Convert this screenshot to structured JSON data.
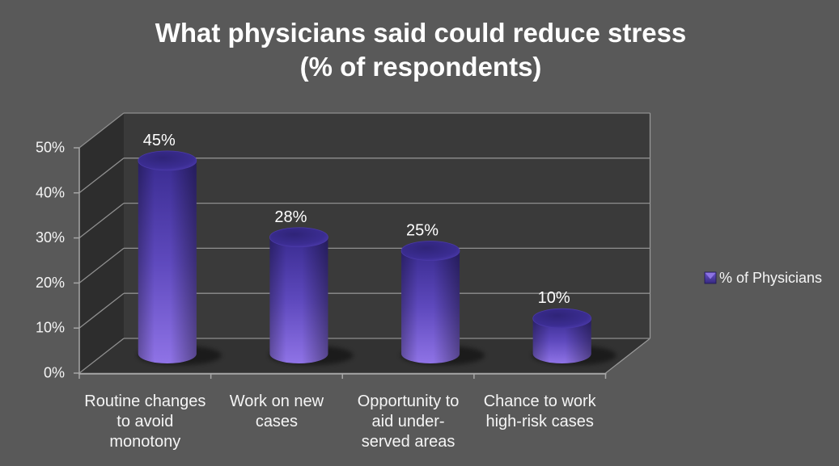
{
  "chart_data": {
    "type": "bar",
    "subtype": "3d-cylinder",
    "title": "What physicians said could reduce stress",
    "subtitle": "(% of respondents)",
    "categories": [
      "Routine changes to avoid monotony",
      "Work on new cases",
      "Opportunity to aid under-served areas",
      "Chance to work high-risk cases"
    ],
    "categories_wrapped": [
      [
        "Routine changes",
        "to avoid",
        "monotony"
      ],
      [
        "Work on new",
        "cases"
      ],
      [
        "Opportunity to",
        "aid under-",
        "served areas"
      ],
      [
        "Chance to work",
        "high-risk cases"
      ]
    ],
    "series": [
      {
        "name": "% of Physicians",
        "values": [
          45,
          28,
          25,
          10
        ]
      }
    ],
    "data_labels": [
      "45%",
      "28%",
      "25%",
      "10%"
    ],
    "y_ticks": [
      "0%",
      "10%",
      "20%",
      "30%",
      "40%",
      "50%"
    ],
    "ylim": [
      0,
      50
    ],
    "xlabel": "",
    "ylabel": "",
    "grid": true,
    "legend_position": "right",
    "colors": {
      "background": "#595959",
      "wall_back": "#3a3a3a",
      "wall_side": "#2d2d2d",
      "floor": "#323232",
      "gridline": "#8f8f8f",
      "axis_line": "#a6a6a6",
      "wall_edge": "#9a9a9a",
      "bar_body_top": "#3a2c91",
      "bar_body_mid": "#5e49bd",
      "bar_body_bottom": "#8f73e6",
      "bar_cap_dark": "#2f2478",
      "bar_cap_mid": "#3b2d92",
      "bar_cap_light": "#4e3cae",
      "legend_marker_light": "#8d74e2",
      "legend_marker_dark": "#352880",
      "shadow": "#000000",
      "text": "#f5f5f5",
      "title_text": "#ffffff"
    }
  }
}
